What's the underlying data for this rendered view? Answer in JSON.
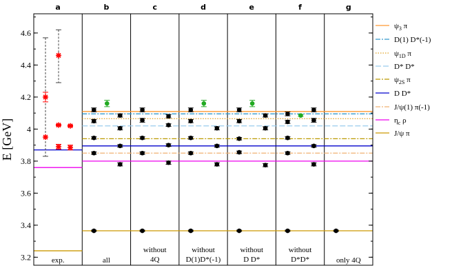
{
  "chart_data": {
    "type": "scatter",
    "title": "",
    "ylabel": "E [GeV]",
    "ylim": [
      3.15,
      4.72
    ],
    "yticks": [
      3.2,
      3.4,
      3.6,
      3.8,
      4.0,
      4.2,
      4.4,
      4.6
    ],
    "ytick_labels": [
      "3.2",
      "3.4",
      "3.6",
      "3.8",
      "4",
      "4.2",
      "4.4",
      "4.6"
    ],
    "panels": [
      {
        "id": "a",
        "label": "a",
        "caption": [
          "exp."
        ]
      },
      {
        "id": "b",
        "label": "b",
        "caption": [
          "all"
        ]
      },
      {
        "id": "c",
        "label": "c",
        "caption": [
          "without",
          "4Q"
        ]
      },
      {
        "id": "d",
        "label": "d",
        "caption": [
          "without",
          "D(1)D*(-1)"
        ]
      },
      {
        "id": "e",
        "label": "e",
        "caption": [
          "without",
          "D D*"
        ]
      },
      {
        "id": "f",
        "label": "f",
        "caption": [
          "without",
          "D*D*"
        ]
      },
      {
        "id": "g",
        "label": "g",
        "caption": [
          "only 4Q"
        ]
      }
    ],
    "thresholds": [
      {
        "name": "ψ3 π",
        "base": "ψ",
        "sub": "3",
        "rest": " π",
        "value": 4.11,
        "color": "#ff9933",
        "dash": ""
      },
      {
        "name": "D(1) D*(-1)",
        "base": "D(1) D*(-1)",
        "sub": "",
        "rest": "",
        "value": 4.095,
        "color": "#3399cc",
        "dash": "7,2,2,2"
      },
      {
        "name": "ψ1D π",
        "base": "ψ",
        "sub": "1D",
        "rest": " π",
        "value": 4.065,
        "color": "#e0a020",
        "dash": "1.5,2"
      },
      {
        "name": "D* D*",
        "base": "D* D*",
        "sub": "",
        "rest": "",
        "value": 4.02,
        "color": "#99ccee",
        "dash": "8,3"
      },
      {
        "name": "ψ2S π",
        "base": "ψ",
        "sub": "2S",
        "rest": " π",
        "value": 3.94,
        "color": "#bb9900",
        "dash": "7,2,2,2"
      },
      {
        "name": "D D*",
        "base": "D D*",
        "sub": "",
        "rest": "",
        "value": 3.895,
        "color": "#0000cc",
        "dash": ""
      },
      {
        "name": "J/ψ(1) π(-1)",
        "base": "J/ψ(1) π(-1)",
        "sub": "",
        "rest": "",
        "value": 3.85,
        "color": "#f0b070",
        "dash": "7,2,2,2"
      },
      {
        "name": "ηc ρ",
        "base": "η",
        "sub": "c",
        "rest": " ρ",
        "value": 3.8,
        "color": "#ee00ee",
        "dash": ""
      },
      {
        "name": "J/ψ π",
        "base": "J/ψ π",
        "sub": "",
        "rest": "",
        "value": 3.365,
        "color": "#cc9900",
        "dash": ""
      }
    ],
    "experiment_lines": [
      {
        "name": "ηc ρ",
        "value": 3.76,
        "color": "#ee00ee"
      },
      {
        "name": "D D*",
        "value": 3.87,
        "color": "#0000cc"
      },
      {
        "name": "J/ψ π",
        "value": 3.24,
        "color": "#cc9900"
      }
    ],
    "experiment_points": [
      {
        "col": 0,
        "y": 3.95,
        "lo": 3.83,
        "hi": 4.57,
        "color": "#ff0000",
        "marker": "star",
        "err_style": "dashed"
      },
      {
        "col": 0,
        "y": 4.2,
        "lo": 4.17,
        "hi": 4.23,
        "color": "#ff0000",
        "marker": "star",
        "err_style": "solid"
      },
      {
        "col": 1,
        "y": 4.46,
        "lo": 4.29,
        "hi": 4.62,
        "color": "#ff0000",
        "marker": "star",
        "err_style": "dashed"
      },
      {
        "col": 1,
        "y": 4.025,
        "lo": 4.02,
        "hi": 4.03,
        "color": "#ff0000",
        "marker": "star",
        "err_style": "solid"
      },
      {
        "col": 1,
        "y": 3.89,
        "lo": 3.875,
        "hi": 3.905,
        "color": "#ff0000",
        "marker": "star",
        "err_style": "solid"
      },
      {
        "col": 2,
        "y": 4.02,
        "lo": 4.015,
        "hi": 4.025,
        "color": "#ff0000",
        "marker": "star",
        "err_style": "solid"
      },
      {
        "col": 2,
        "y": 3.885,
        "lo": 3.87,
        "hi": 3.9,
        "color": "#ff0000",
        "marker": "star",
        "err_style": "solid"
      }
    ],
    "lattice_points": [
      {
        "panel": "b",
        "col": 0,
        "y": 3.365,
        "err": 0.004,
        "color": "#000000"
      },
      {
        "panel": "b",
        "col": 0,
        "y": 3.85,
        "err": 0.008,
        "color": "#000000"
      },
      {
        "panel": "b",
        "col": 0,
        "y": 3.945,
        "err": 0.008,
        "color": "#000000"
      },
      {
        "panel": "b",
        "col": 0,
        "y": 4.05,
        "err": 0.01,
        "color": "#000000"
      },
      {
        "panel": "b",
        "col": 0,
        "y": 4.12,
        "err": 0.012,
        "color": "#000000"
      },
      {
        "panel": "b",
        "col": 2,
        "y": 3.78,
        "err": 0.01,
        "color": "#000000"
      },
      {
        "panel": "b",
        "col": 2,
        "y": 3.895,
        "err": 0.008,
        "color": "#000000"
      },
      {
        "panel": "b",
        "col": 2,
        "y": 4.005,
        "err": 0.01,
        "color": "#000000"
      },
      {
        "panel": "b",
        "col": 2,
        "y": 4.085,
        "err": 0.01,
        "color": "#000000"
      },
      {
        "panel": "b",
        "col": 1,
        "y": 4.16,
        "err": 0.02,
        "color": "#22aa22"
      },
      {
        "panel": "c",
        "col": 0,
        "y": 3.365,
        "err": 0.004,
        "color": "#000000"
      },
      {
        "panel": "c",
        "col": 0,
        "y": 3.85,
        "err": 0.008,
        "color": "#000000"
      },
      {
        "panel": "c",
        "col": 0,
        "y": 3.945,
        "err": 0.008,
        "color": "#000000"
      },
      {
        "panel": "c",
        "col": 0,
        "y": 4.055,
        "err": 0.012,
        "color": "#000000"
      },
      {
        "panel": "c",
        "col": 0,
        "y": 4.12,
        "err": 0.012,
        "color": "#000000"
      },
      {
        "panel": "c",
        "col": 2,
        "y": 3.79,
        "err": 0.01,
        "color": "#000000"
      },
      {
        "panel": "c",
        "col": 2,
        "y": 3.9,
        "err": 0.008,
        "color": "#000000"
      },
      {
        "panel": "c",
        "col": 2,
        "y": 4.025,
        "err": 0.008,
        "color": "#000000"
      },
      {
        "panel": "c",
        "col": 2,
        "y": 4.08,
        "err": 0.01,
        "color": "#000000"
      },
      {
        "panel": "d",
        "col": 0,
        "y": 3.365,
        "err": 0.004,
        "color": "#000000"
      },
      {
        "panel": "d",
        "col": 0,
        "y": 3.85,
        "err": 0.008,
        "color": "#000000"
      },
      {
        "panel": "d",
        "col": 0,
        "y": 3.945,
        "err": 0.008,
        "color": "#000000"
      },
      {
        "panel": "d",
        "col": 0,
        "y": 4.05,
        "err": 0.01,
        "color": "#000000"
      },
      {
        "panel": "d",
        "col": 0,
        "y": 4.12,
        "err": 0.012,
        "color": "#000000"
      },
      {
        "panel": "d",
        "col": 2,
        "y": 3.78,
        "err": 0.01,
        "color": "#000000"
      },
      {
        "panel": "d",
        "col": 2,
        "y": 3.895,
        "err": 0.008,
        "color": "#000000"
      },
      {
        "panel": "d",
        "col": 2,
        "y": 4.005,
        "err": 0.01,
        "color": "#000000"
      },
      {
        "panel": "d",
        "col": 1,
        "y": 4.16,
        "err": 0.02,
        "color": "#22aa22"
      },
      {
        "panel": "e",
        "col": 0,
        "y": 3.365,
        "err": 0.004,
        "color": "#000000"
      },
      {
        "panel": "e",
        "col": 0,
        "y": 3.855,
        "err": 0.008,
        "color": "#000000"
      },
      {
        "panel": "e",
        "col": 0,
        "y": 3.94,
        "err": 0.008,
        "color": "#000000"
      },
      {
        "panel": "e",
        "col": 0,
        "y": 4.05,
        "err": 0.01,
        "color": "#000000"
      },
      {
        "panel": "e",
        "col": 0,
        "y": 4.12,
        "err": 0.012,
        "color": "#000000"
      },
      {
        "panel": "e",
        "col": 2,
        "y": 3.775,
        "err": 0.01,
        "color": "#000000"
      },
      {
        "panel": "e",
        "col": 2,
        "y": 4.005,
        "err": 0.01,
        "color": "#000000"
      },
      {
        "panel": "e",
        "col": 2,
        "y": 4.085,
        "err": 0.01,
        "color": "#000000"
      },
      {
        "panel": "e",
        "col": 1,
        "y": 4.16,
        "err": 0.02,
        "color": "#22aa22"
      },
      {
        "panel": "f",
        "col": 0,
        "y": 3.365,
        "err": 0.004,
        "color": "#000000"
      },
      {
        "panel": "f",
        "col": 0,
        "y": 3.85,
        "err": 0.008,
        "color": "#000000"
      },
      {
        "panel": "f",
        "col": 0,
        "y": 3.945,
        "err": 0.008,
        "color": "#000000"
      },
      {
        "panel": "f",
        "col": 0,
        "y": 4.045,
        "err": 0.01,
        "color": "#000000"
      },
      {
        "panel": "f",
        "col": 0,
        "y": 4.095,
        "err": 0.012,
        "color": "#000000"
      },
      {
        "panel": "f",
        "col": 2,
        "y": 3.78,
        "err": 0.01,
        "color": "#000000"
      },
      {
        "panel": "f",
        "col": 2,
        "y": 3.895,
        "err": 0.008,
        "color": "#000000"
      },
      {
        "panel": "f",
        "col": 2,
        "y": 4.055,
        "err": 0.012,
        "color": "#000000"
      },
      {
        "panel": "f",
        "col": 2,
        "y": 4.12,
        "err": 0.012,
        "color": "#000000"
      },
      {
        "panel": "f",
        "col": 1,
        "y": 4.085,
        "err": 0.006,
        "color": "#22aa22"
      },
      {
        "panel": "g",
        "col": 0,
        "y": 3.365,
        "err": 0.004,
        "color": "#000000"
      }
    ]
  }
}
